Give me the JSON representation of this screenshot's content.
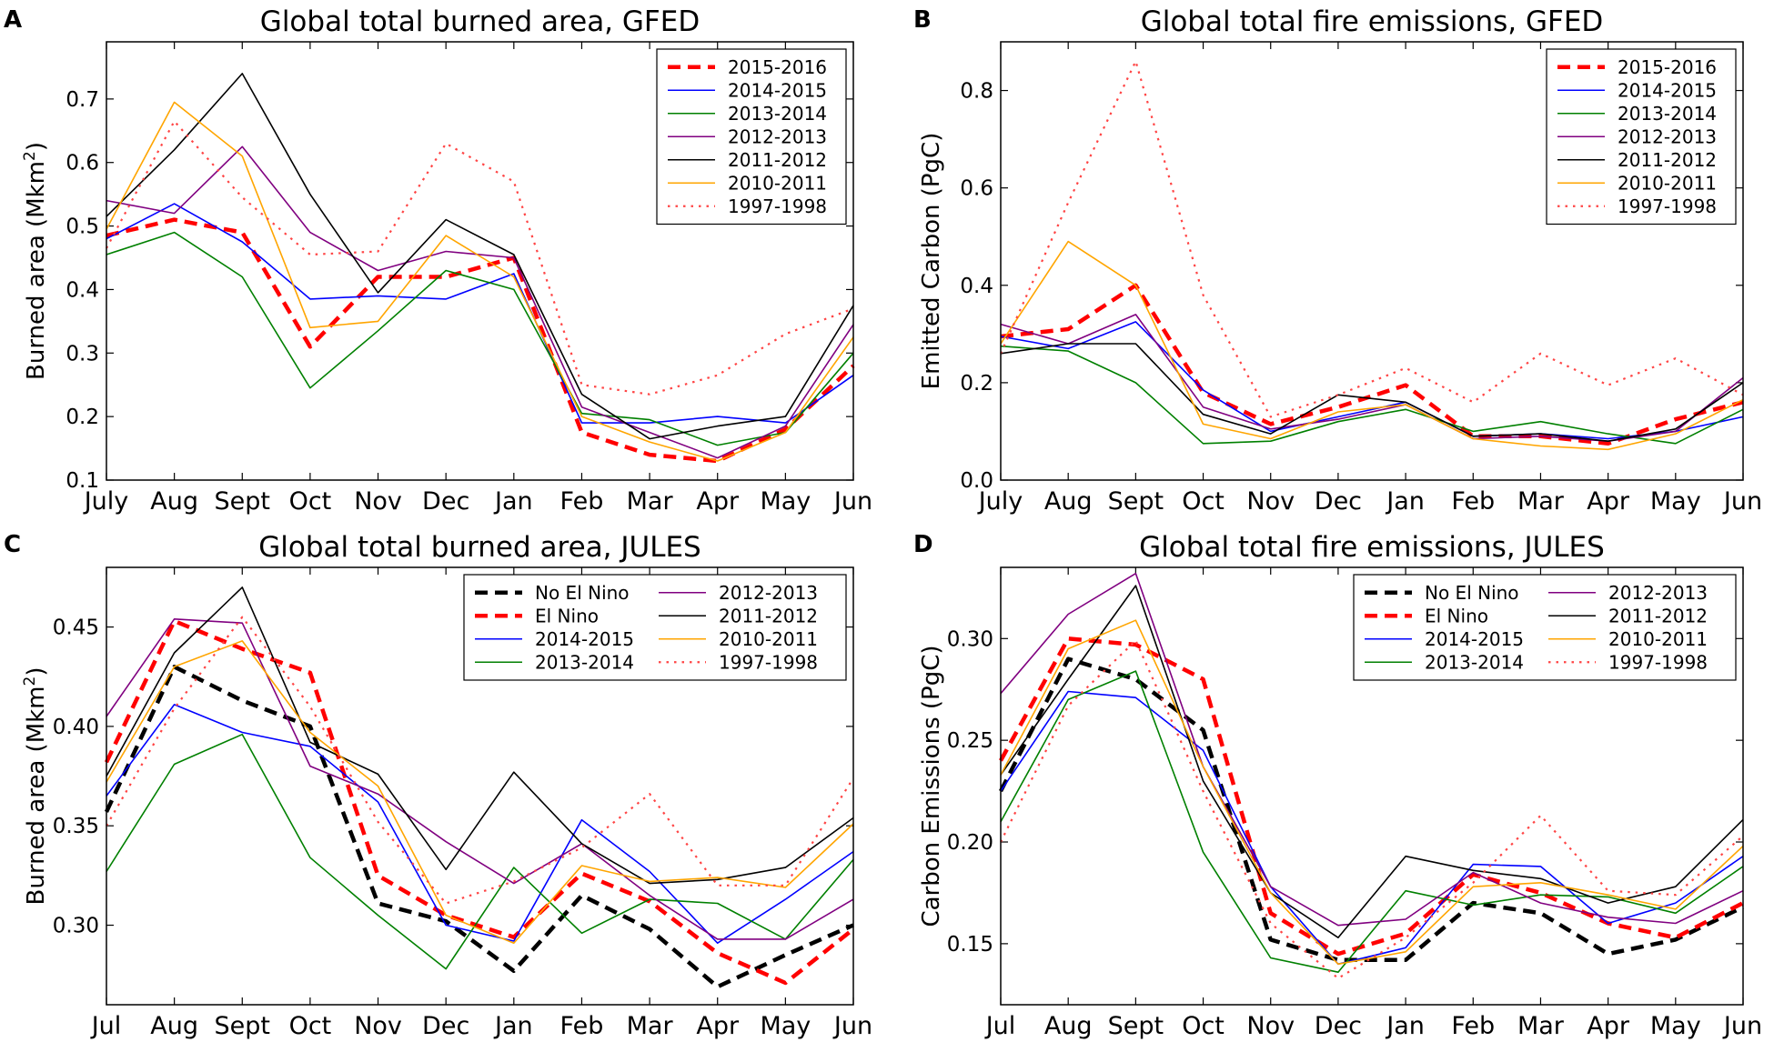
{
  "panels": [
    {
      "letter": "A"
    },
    {
      "letter": "B"
    },
    {
      "letter": "C"
    },
    {
      "letter": "D"
    }
  ],
  "chart_data": [
    {
      "type": "line",
      "title": "Global total burned area, GFED",
      "ylabel_main": "Burned area (Mkm",
      "ylabel_sup": "2",
      "ylabel_close": ")",
      "ylim": [
        0.1,
        0.79
      ],
      "yticks": [
        0.1,
        0.2,
        0.3,
        0.4,
        0.5,
        0.6,
        0.7
      ],
      "ytick_labels": [
        "0.1",
        "0.2",
        "0.3",
        "0.4",
        "0.5",
        "0.6",
        "0.7"
      ],
      "categories": [
        "July",
        "Aug",
        "Sept",
        "Oct",
        "Nov",
        "Dec",
        "Jan",
        "Feb",
        "Mar",
        "Apr",
        "May",
        "Jun"
      ],
      "legend_position": "top-right",
      "legend_columns": 1,
      "series": [
        {
          "name": "2015-2016",
          "color": "#ff0000",
          "style": "dashed-thick",
          "values": [
            0.485,
            0.51,
            0.49,
            0.31,
            0.42,
            0.42,
            0.45,
            0.175,
            0.14,
            0.13,
            0.18,
            0.28
          ]
        },
        {
          "name": "2014-2015",
          "color": "#0000ff",
          "style": "solid",
          "values": [
            0.48,
            0.535,
            0.475,
            0.385,
            0.39,
            0.385,
            0.425,
            0.19,
            0.19,
            0.2,
            0.19,
            0.265
          ]
        },
        {
          "name": "2013-2014",
          "color": "#008000",
          "style": "solid",
          "values": [
            0.455,
            0.49,
            0.42,
            0.245,
            0.335,
            0.43,
            0.4,
            0.205,
            0.195,
            0.155,
            0.175,
            0.3
          ]
        },
        {
          "name": "2012-2013",
          "color": "#800080",
          "style": "solid",
          "values": [
            0.54,
            0.52,
            0.625,
            0.49,
            0.43,
            0.46,
            0.45,
            0.215,
            0.175,
            0.135,
            0.185,
            0.345
          ]
        },
        {
          "name": "2011-2012",
          "color": "#000000",
          "style": "solid",
          "values": [
            0.515,
            0.62,
            0.74,
            0.55,
            0.395,
            0.51,
            0.455,
            0.235,
            0.165,
            0.185,
            0.2,
            0.375
          ]
        },
        {
          "name": "2010-2011",
          "color": "#ffa500",
          "style": "solid",
          "values": [
            0.495,
            0.695,
            0.61,
            0.34,
            0.35,
            0.485,
            0.42,
            0.2,
            0.16,
            0.13,
            0.175,
            0.325
          ]
        },
        {
          "name": "1997-1998",
          "color": "#ff4444",
          "style": "dotted",
          "values": [
            0.465,
            0.665,
            0.545,
            0.455,
            0.46,
            0.63,
            0.57,
            0.25,
            0.235,
            0.265,
            0.33,
            0.37
          ]
        }
      ]
    },
    {
      "type": "line",
      "title": "Global total fire emissions, GFED",
      "ylabel_main": "Emitted Carbon (PgC)",
      "ylabel_sup": "",
      "ylabel_close": "",
      "ylim": [
        0.0,
        0.9
      ],
      "yticks": [
        0.0,
        0.2,
        0.4,
        0.6,
        0.8
      ],
      "ytick_labels": [
        "0.0",
        "0.2",
        "0.4",
        "0.6",
        "0.8"
      ],
      "categories": [
        "July",
        "Aug",
        "Sept",
        "Oct",
        "Nov",
        "Dec",
        "Jan",
        "Feb",
        "Mar",
        "Apr",
        "May",
        "Jun"
      ],
      "legend_position": "top-right",
      "legend_columns": 1,
      "series": [
        {
          "name": "2015-2016",
          "color": "#ff0000",
          "style": "dashed-thick",
          "values": [
            0.295,
            0.31,
            0.4,
            0.18,
            0.115,
            0.15,
            0.195,
            0.09,
            0.09,
            0.075,
            0.125,
            0.16
          ]
        },
        {
          "name": "2014-2015",
          "color": "#0000ff",
          "style": "solid",
          "values": [
            0.295,
            0.27,
            0.325,
            0.185,
            0.1,
            0.13,
            0.16,
            0.09,
            0.095,
            0.085,
            0.1,
            0.13
          ]
        },
        {
          "name": "2013-2014",
          "color": "#008000",
          "style": "solid",
          "values": [
            0.275,
            0.265,
            0.2,
            0.075,
            0.08,
            0.12,
            0.145,
            0.1,
            0.12,
            0.095,
            0.075,
            0.145
          ]
        },
        {
          "name": "2012-2013",
          "color": "#800080",
          "style": "solid",
          "values": [
            0.32,
            0.28,
            0.34,
            0.15,
            0.105,
            0.125,
            0.155,
            0.085,
            0.09,
            0.08,
            0.1,
            0.21
          ]
        },
        {
          "name": "2011-2012",
          "color": "#000000",
          "style": "solid",
          "values": [
            0.26,
            0.28,
            0.28,
            0.135,
            0.095,
            0.175,
            0.16,
            0.09,
            0.095,
            0.08,
            0.105,
            0.2
          ]
        },
        {
          "name": "2010-2011",
          "color": "#ffa500",
          "style": "solid",
          "values": [
            0.28,
            0.49,
            0.4,
            0.115,
            0.085,
            0.14,
            0.155,
            0.085,
            0.07,
            0.063,
            0.095,
            0.165
          ]
        },
        {
          "name": "1997-1998",
          "color": "#ff4444",
          "style": "dotted",
          "values": [
            0.26,
            0.57,
            0.86,
            0.38,
            0.13,
            0.175,
            0.23,
            0.16,
            0.26,
            0.195,
            0.25,
            0.175
          ]
        }
      ]
    },
    {
      "type": "line",
      "title": "Global total burned area, JULES",
      "ylabel_main": "Burned area (Mkm",
      "ylabel_sup": "2",
      "ylabel_close": ")",
      "ylim": [
        0.26,
        0.48
      ],
      "yticks": [
        0.3,
        0.35,
        0.4,
        0.45
      ],
      "ytick_labels": [
        "0.30",
        "0.35",
        "0.40",
        "0.45"
      ],
      "categories": [
        "Jul",
        "Aug",
        "Sept",
        "Oct",
        "Nov",
        "Dec",
        "Jan",
        "Feb",
        "Mar",
        "Apr",
        "May",
        "Jun"
      ],
      "legend_position": "top-right",
      "legend_columns": 2,
      "series": [
        {
          "name": "No El Nino",
          "color": "#000000",
          "style": "dashed-thick",
          "values": [
            0.357,
            0.43,
            0.413,
            0.4,
            0.311,
            0.302,
            0.277,
            0.315,
            0.298,
            0.269,
            0.285,
            0.3
          ]
        },
        {
          "name": "El Nino",
          "color": "#ff0000",
          "style": "dashed-thick",
          "values": [
            0.382,
            0.453,
            0.439,
            0.427,
            0.325,
            0.305,
            0.294,
            0.326,
            0.312,
            0.286,
            0.271,
            0.298
          ]
        },
        {
          "name": "2014-2015",
          "color": "#0000ff",
          "style": "solid",
          "values": [
            0.365,
            0.411,
            0.397,
            0.39,
            0.362,
            0.3,
            0.292,
            0.353,
            0.327,
            0.291,
            0.313,
            0.337
          ]
        },
        {
          "name": "2013-2014",
          "color": "#008000",
          "style": "solid",
          "values": [
            0.327,
            0.381,
            0.396,
            0.334,
            0.305,
            0.278,
            0.329,
            0.296,
            0.313,
            0.311,
            0.293,
            0.333
          ]
        },
        {
          "name": "2012-2013",
          "color": "#800080",
          "style": "solid",
          "values": [
            0.405,
            0.454,
            0.452,
            0.38,
            0.366,
            0.342,
            0.321,
            0.341,
            0.315,
            0.293,
            0.293,
            0.313
          ]
        },
        {
          "name": "2011-2012",
          "color": "#000000",
          "style": "solid",
          "values": [
            0.375,
            0.437,
            0.47,
            0.392,
            0.376,
            0.328,
            0.377,
            0.341,
            0.321,
            0.323,
            0.329,
            0.354
          ]
        },
        {
          "name": "2010-2011",
          "color": "#ffa500",
          "style": "solid",
          "values": [
            0.372,
            0.43,
            0.443,
            0.397,
            0.37,
            0.305,
            0.291,
            0.33,
            0.322,
            0.324,
            0.319,
            0.351
          ]
        },
        {
          "name": "1997-1998",
          "color": "#ff4444",
          "style": "dotted",
          "values": [
            0.35,
            0.409,
            0.455,
            0.41,
            0.352,
            0.311,
            0.322,
            0.339,
            0.366,
            0.32,
            0.32,
            0.374
          ]
        }
      ]
    },
    {
      "type": "line",
      "title": "Global total fire emissions, JULES",
      "ylabel_main": "Carbon Emissions (PgC)",
      "ylabel_sup": "",
      "ylabel_close": "",
      "ylim": [
        0.12,
        0.335
      ],
      "yticks": [
        0.15,
        0.2,
        0.25,
        0.3
      ],
      "ytick_labels": [
        "0.15",
        "0.20",
        "0.25",
        "0.30"
      ],
      "categories": [
        "Jul",
        "Aug",
        "Sept",
        "Oct",
        "Nov",
        "Dec",
        "Jan",
        "Feb",
        "Mar",
        "Apr",
        "May",
        "Jun"
      ],
      "legend_position": "top-right",
      "legend_columns": 2,
      "series": [
        {
          "name": "No El Nino",
          "color": "#000000",
          "style": "dashed-thick",
          "values": [
            0.225,
            0.29,
            0.28,
            0.255,
            0.152,
            0.142,
            0.142,
            0.17,
            0.165,
            0.145,
            0.152,
            0.168
          ]
        },
        {
          "name": "El Nino",
          "color": "#ff0000",
          "style": "dashed-thick",
          "values": [
            0.24,
            0.3,
            0.297,
            0.28,
            0.165,
            0.145,
            0.155,
            0.184,
            0.175,
            0.16,
            0.153,
            0.17
          ]
        },
        {
          "name": "2014-2015",
          "color": "#0000ff",
          "style": "solid",
          "values": [
            0.225,
            0.274,
            0.271,
            0.245,
            0.178,
            0.14,
            0.148,
            0.189,
            0.188,
            0.16,
            0.17,
            0.193
          ]
        },
        {
          "name": "2013-2014",
          "color": "#008000",
          "style": "solid",
          "values": [
            0.21,
            0.27,
            0.284,
            0.195,
            0.143,
            0.136,
            0.176,
            0.169,
            0.174,
            0.173,
            0.165,
            0.188
          ]
        },
        {
          "name": "2012-2013",
          "color": "#800080",
          "style": "solid",
          "values": [
            0.273,
            0.312,
            0.332,
            0.237,
            0.178,
            0.159,
            0.162,
            0.185,
            0.17,
            0.163,
            0.16,
            0.176
          ]
        },
        {
          "name": "2011-2012",
          "color": "#000000",
          "style": "solid",
          "values": [
            0.233,
            0.28,
            0.326,
            0.23,
            0.175,
            0.153,
            0.193,
            0.186,
            0.182,
            0.17,
            0.178,
            0.211
          ]
        },
        {
          "name": "2010-2011",
          "color": "#ffa500",
          "style": "solid",
          "values": [
            0.233,
            0.295,
            0.309,
            0.237,
            0.175,
            0.14,
            0.146,
            0.178,
            0.18,
            0.174,
            0.167,
            0.198
          ]
        },
        {
          "name": "1997-1998",
          "color": "#ff4444",
          "style": "dotted",
          "values": [
            0.2,
            0.267,
            0.299,
            0.225,
            0.16,
            0.133,
            0.153,
            0.18,
            0.213,
            0.176,
            0.174,
            0.203
          ]
        }
      ]
    }
  ]
}
